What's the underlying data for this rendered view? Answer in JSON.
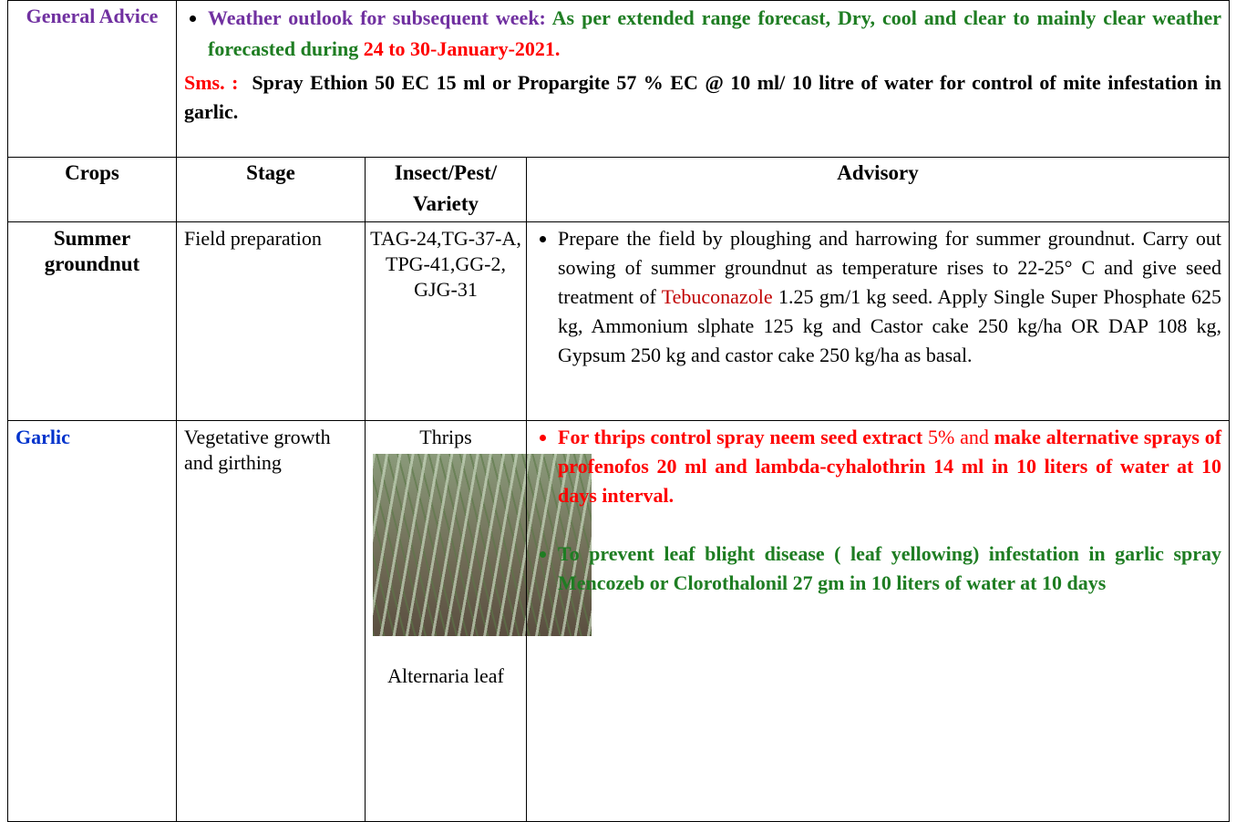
{
  "general_advice": {
    "label": "General Advice",
    "outlook_heading": "Weather outlook for subsequent week:",
    "outlook_text": "As per extended range forecast, Dry, cool and clear to mainly clear weather forecasted during",
    "outlook_dates": "24 to 30-January-2021.",
    "sms_label": "Sms. :",
    "sms_text": "Spray Ethion 50 EC 15 ml or Propargite 57 % EC @ 10 ml/ 10 litre of water for control of mite infestation in garlic."
  },
  "table": {
    "headers": [
      "Crops",
      "Stage",
      "Insect/Pest/ Variety",
      "Advisory"
    ],
    "rows": [
      {
        "crop": "Summer groundnut",
        "stage": "Field preparation",
        "pest": [
          "TAG-24,TG-37-A, TPG-41,GG-2, GJG-31"
        ],
        "advisory": [
          [
            "Prepare the field by ploughing and harrowing for summer groundnut.  Carry out sowing of summer groundnut as temperature rises to 22-25° C and give seed treatment of ",
            "Tebuconazole",
            " 1.25 gm/1 kg seed. Apply Single Super Phosphate 625 kg,  Ammonium slphate 125 kg and Castor cake 250 kg/ha OR DAP 108  kg, Gypsum 250 kg and castor cake 250 kg/ha as basal."
          ]
        ]
      },
      {
        "crop": "Garlic",
        "stage": "Vegetative growth and girthing",
        "pest": [
          "Thrips",
          "Alternaria leaf"
        ],
        "advisory": [
          [
            "For thrips control spray neem seed extract",
            " 5% and ",
            "make alternative sprays of profenofos  20 ml and lambda-cyhalothrin 14 ml in 10 liters of water at 10 days interval."
          ],
          [
            "To prevent leaf blight disease ( leaf yellowing) infestation in garlic spray Mencozeb or Clorothalonil 27 gm in 10 liters of water at 10 days"
          ]
        ]
      }
    ]
  }
}
